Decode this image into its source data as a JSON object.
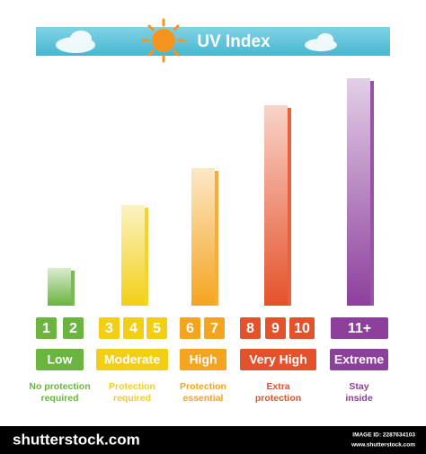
{
  "header": {
    "title": "UV Index"
  },
  "groups": [
    {
      "numbers": [
        "1",
        "2"
      ],
      "level": "Low",
      "advice": [
        "No protection",
        "required"
      ],
      "color": "#6ab43f"
    },
    {
      "numbers": [
        "3",
        "4",
        "5"
      ],
      "level": "Moderate",
      "advice": [
        "Protection",
        "required"
      ],
      "color": "#f2cf14"
    },
    {
      "numbers": [
        "6",
        "7"
      ],
      "level": "High",
      "advice": [
        "Protection",
        "essential"
      ],
      "color": "#f4a41f"
    },
    {
      "numbers": [
        "8",
        "9",
        "10"
      ],
      "level": "Very High",
      "advice": [
        "Extra",
        "protection"
      ],
      "color": "#e4522b"
    },
    {
      "numbers": [
        "11+"
      ],
      "level": "Extreme",
      "advice": [
        "Stay",
        "inside"
      ],
      "color": "#8d3f9c"
    }
  ],
  "footer": {
    "brand": "shutterstock.com",
    "image_id": "IMAGE ID: 2287634103",
    "site": "www.shutterstock.com"
  }
}
